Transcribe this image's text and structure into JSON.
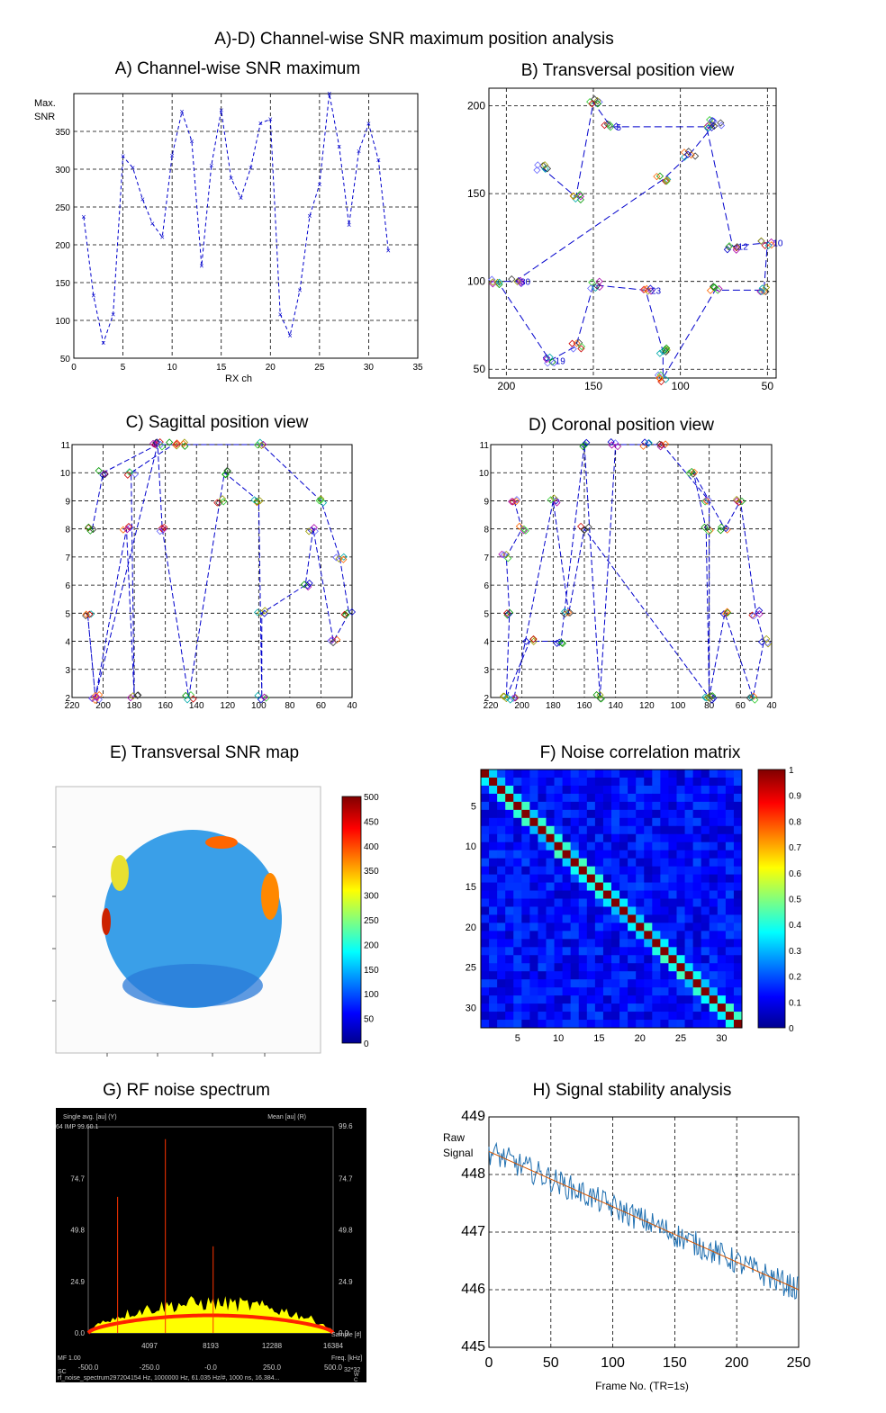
{
  "figure_title": "A)-D) Channel-wise SNR maximum position analysis",
  "chart_data": [
    {
      "id": "A",
      "type": "line",
      "title": "A) Channel-wise SNR maximum",
      "xlabel": "RX ch",
      "ylabel": "Max.\nSNR",
      "xlim": [
        0,
        35
      ],
      "ylim": [
        50,
        400
      ],
      "xticks": [
        0,
        5,
        10,
        15,
        20,
        25,
        30,
        35
      ],
      "yticks": [
        50,
        100,
        150,
        200,
        250,
        300,
        350
      ],
      "grid": true,
      "x": [
        1,
        2,
        3,
        4,
        5,
        6,
        7,
        8,
        9,
        10,
        11,
        12,
        13,
        14,
        15,
        16,
        17,
        18,
        19,
        20,
        21,
        22,
        23,
        24,
        25,
        26,
        27,
        28,
        29,
        30,
        31,
        32
      ],
      "values": [
        237,
        133,
        70,
        108,
        317,
        302,
        260,
        228,
        210,
        318,
        376,
        337,
        172,
        305,
        378,
        288,
        262,
        302,
        361,
        366,
        108,
        80,
        140,
        238,
        280,
        400,
        330,
        226,
        324,
        360,
        312,
        192
      ]
    },
    {
      "id": "B",
      "type": "scatter",
      "title": "B) Transversal position view",
      "xlim": [
        210,
        45
      ],
      "ylim": [
        45,
        210
      ],
      "xticks": [
        200,
        150,
        100,
        50
      ],
      "yticks": [
        50,
        100,
        150,
        200
      ],
      "grid": true,
      "labels": [
        "5",
        "12",
        "10",
        "30",
        "19",
        "23"
      ]
    },
    {
      "id": "C",
      "type": "scatter",
      "title": "C) Sagittal position view",
      "xlim": [
        220,
        40
      ],
      "ylim": [
        2,
        11
      ],
      "xticks": [
        220,
        200,
        180,
        160,
        140,
        120,
        100,
        80,
        60,
        40
      ],
      "yticks": [
        2,
        3,
        4,
        5,
        6,
        7,
        8,
        9,
        10,
        11
      ],
      "grid": true
    },
    {
      "id": "D",
      "type": "scatter",
      "title": "D) Coronal position view",
      "xlim": [
        220,
        40
      ],
      "ylim": [
        2,
        11
      ],
      "xticks": [
        220,
        200,
        180,
        160,
        140,
        120,
        100,
        80,
        60,
        40
      ],
      "yticks": [
        2,
        3,
        4,
        5,
        6,
        7,
        8,
        9,
        10,
        11
      ],
      "grid": true
    },
    {
      "id": "E",
      "type": "heatmap",
      "title": "E) Transversal SNR map",
      "colorbar_ticks": [
        0,
        50,
        100,
        150,
        200,
        250,
        300,
        350,
        400,
        450,
        500
      ],
      "clim": [
        0,
        500
      ]
    },
    {
      "id": "F",
      "type": "heatmap",
      "title": "F) Noise correlation matrix",
      "xticks": [
        5,
        10,
        15,
        20,
        25,
        30
      ],
      "yticks": [
        5,
        10,
        15,
        20,
        25,
        30
      ],
      "size": 32,
      "clim": [
        0,
        1
      ],
      "colorbar_ticks": [
        0,
        0.1,
        0.2,
        0.3,
        0.4,
        0.5,
        0.6,
        0.7,
        0.8,
        0.9,
        1
      ]
    },
    {
      "id": "G",
      "type": "line",
      "title": "G) RF noise spectrum",
      "left_label": "Single avg. [au] (Y)",
      "right_label": "Mean [au] (R)",
      "top_left_text": "64 IMP 99.60.1",
      "top_right_value": "99.6",
      "yticks": [
        "74.7",
        "49.8",
        "24.9",
        "0.0"
      ],
      "xticks_sample": [
        "4097",
        "8193",
        "12288",
        "16384"
      ],
      "xticks_freq": [
        "-500.0",
        "-250.0",
        "-0.0",
        "250.0",
        "500.0"
      ],
      "sample_label": "Sample [#]",
      "freq_label": "Freq. [kHz]",
      "mf_label": "MF 1.00",
      "sc_label": "SC",
      "footer": "rf_noise_spectrum297204154 Hz, 1000000 Hz, 61.035 Hz/#, 1000 ns, 16.384...",
      "corner_label": "32*32",
      "corner_small": "W",
      "corner_small2": "C",
      "spikes": [
        {
          "x_frac": 0.12,
          "height": 0.66
        },
        {
          "x_frac": 0.315,
          "height": 0.94
        },
        {
          "x_frac": 0.51,
          "height": 0.42
        }
      ]
    },
    {
      "id": "H",
      "type": "line",
      "title": "H) Signal stability analysis",
      "xlabel": "Frame No. (TR=1s)",
      "ylabel": "Raw\nSignal",
      "xlim": [
        0,
        250
      ],
      "ylim": [
        445,
        449
      ],
      "xticks": [
        0,
        50,
        100,
        150,
        200,
        250
      ],
      "yticks": [
        445,
        446,
        447,
        448,
        449
      ],
      "trend_start": 448.4,
      "trend_end": 446.0,
      "grid": true
    }
  ]
}
